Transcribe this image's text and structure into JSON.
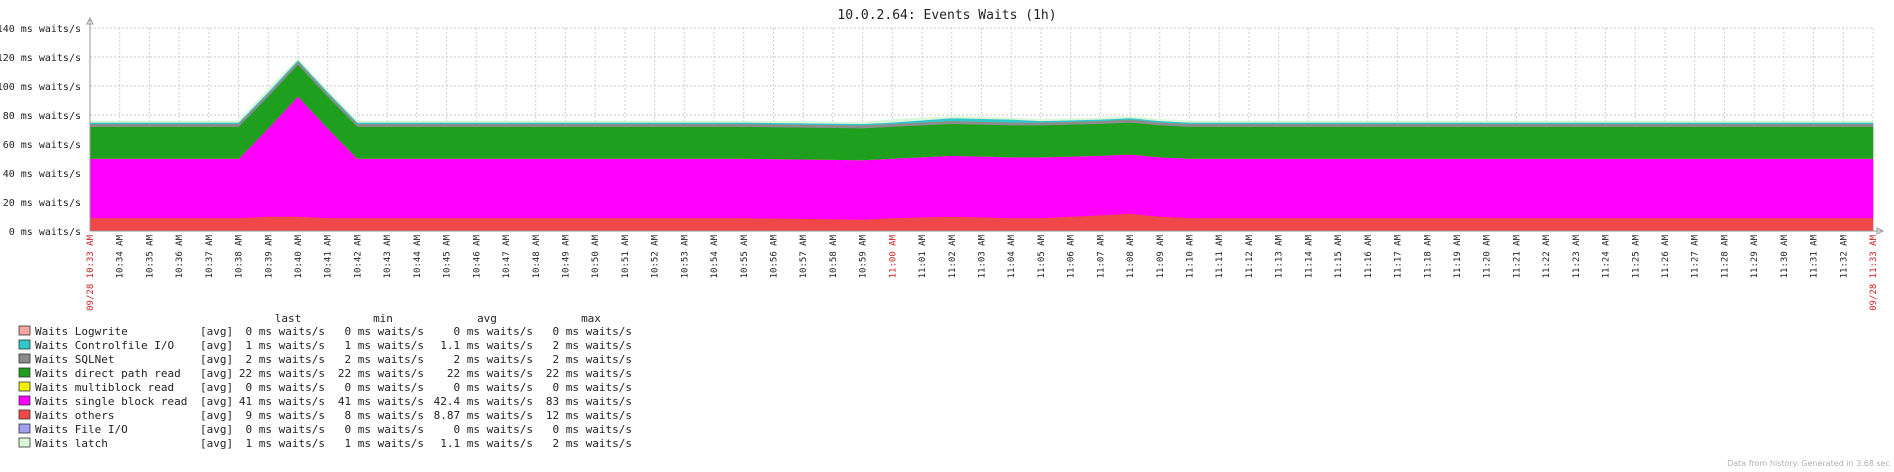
{
  "chart_data": {
    "type": "area",
    "title": "10.0.2.64: Events Waits (1h)",
    "ylim": [
      0,
      140
    ],
    "y_ticks": [
      "0 ms waits/s",
      "20 ms waits/s",
      "40 ms waits/s",
      "60 ms waits/s",
      "80 ms waits/s",
      "100 ms waits/s",
      "120 ms waits/s",
      "140 ms waits/s"
    ],
    "y_tick_values": [
      0,
      20,
      40,
      60,
      80,
      100,
      120,
      140
    ],
    "x_start_label": "09/28 10:33 AM",
    "x_end_label": "09/28 11:33 AM",
    "x_labels": [
      "10:34 AM",
      "10:35 AM",
      "10:36 AM",
      "10:37 AM",
      "10:38 AM",
      "10:39 AM",
      "10:40 AM",
      "10:41 AM",
      "10:42 AM",
      "10:43 AM",
      "10:44 AM",
      "10:45 AM",
      "10:46 AM",
      "10:47 AM",
      "10:48 AM",
      "10:49 AM",
      "10:50 AM",
      "10:51 AM",
      "10:52 AM",
      "10:53 AM",
      "10:54 AM",
      "10:55 AM",
      "10:56 AM",
      "10:57 AM",
      "10:58 AM",
      "10:59 AM",
      "11:00 AM",
      "11:01 AM",
      "11:02 AM",
      "11:03 AM",
      "11:04 AM",
      "11:05 AM",
      "11:06 AM",
      "11:07 AM",
      "11:08 AM",
      "11:09 AM",
      "11:10 AM",
      "11:11 AM",
      "11:12 AM",
      "11:13 AM",
      "11:14 AM",
      "11:15 AM",
      "11:16 AM",
      "11:17 AM",
      "11:18 AM",
      "11:19 AM",
      "11:20 AM",
      "11:21 AM",
      "11:22 AM",
      "11:23 AM",
      "11:24 AM",
      "11:25 AM",
      "11:26 AM",
      "11:27 AM",
      "11:28 AM",
      "11:29 AM",
      "11:30 AM",
      "11:31 AM",
      "11:32 AM",
      "11:33 AM"
    ],
    "x_highlight_labels": [
      "11:00 AM"
    ],
    "x": [
      "10:33",
      "10:37",
      "10:38",
      "10:39",
      "10:40",
      "10:41",
      "10:42",
      "10:46",
      "10:47",
      "10:55",
      "10:59",
      "11:00",
      "11:02",
      "11:04",
      "11:05",
      "11:07",
      "11:08",
      "11:09",
      "11:10",
      "11:20",
      "11:28",
      "11:29",
      "11:33"
    ],
    "series": [
      {
        "name": "Waits Logwrite",
        "color": "#f4a6a0",
        "values": [
          0,
          0,
          0,
          0,
          0,
          0,
          0,
          0,
          0,
          0,
          0,
          0,
          0,
          0,
          0,
          0,
          0,
          0,
          0,
          0,
          0,
          0,
          0
        ]
      },
      {
        "name": "Waits others",
        "color": "#f04848",
        "values": [
          9,
          9,
          9,
          10,
          10,
          9,
          9,
          9,
          9,
          9,
          8,
          9,
          10,
          9,
          9,
          11,
          12,
          10,
          9,
          9,
          9,
          9,
          9
        ]
      },
      {
        "name": "Waits single block read",
        "color": "#ff00ff",
        "values": [
          41,
          41,
          41,
          61,
          83,
          62,
          41,
          41,
          41,
          41,
          41,
          41,
          42,
          42,
          42,
          41,
          41,
          41,
          41,
          41,
          41,
          41,
          41
        ]
      },
      {
        "name": "Waits multiblock read",
        "color": "#f0f000",
        "values": [
          0,
          0,
          0,
          0,
          0,
          0,
          0,
          0,
          0,
          0,
          0,
          0,
          0,
          0,
          0,
          0,
          0,
          0,
          0,
          0,
          0,
          0,
          0
        ]
      },
      {
        "name": "Waits direct path read",
        "color": "#1ea01e",
        "values": [
          22,
          22,
          22,
          22,
          22,
          22,
          22,
          22,
          22,
          22,
          22,
          22,
          22,
          22,
          22,
          22,
          22,
          22,
          22,
          22,
          22,
          22,
          22
        ]
      },
      {
        "name": "Waits SQLNet",
        "color": "#8c8c8c",
        "values": [
          2,
          2,
          2,
          2,
          2,
          2,
          2,
          2,
          2,
          2,
          2,
          2,
          2,
          2,
          2,
          2,
          2,
          2,
          2,
          2,
          2,
          2,
          2
        ]
      },
      {
        "name": "Waits Controlfile I/O",
        "color": "#30c8c8",
        "values": [
          1,
          1,
          1,
          1,
          1,
          1,
          1,
          1,
          1,
          1,
          1,
          1,
          2,
          2,
          1,
          1,
          1,
          1,
          1,
          1,
          1,
          1,
          1
        ]
      },
      {
        "name": "Waits File I/O",
        "color": "#a0a0f0",
        "values": [
          0,
          0,
          0,
          0,
          0,
          0,
          0,
          0,
          0,
          0,
          0,
          0,
          0,
          0,
          0,
          0,
          0,
          0,
          0,
          0,
          0,
          0,
          0
        ]
      },
      {
        "name": "Waits latch",
        "color": "#d8f8d8",
        "values": [
          1,
          1,
          1,
          2,
          1,
          1,
          1,
          1,
          1,
          1,
          1,
          2,
          1,
          1,
          1,
          1,
          1,
          1,
          1,
          1,
          1,
          1,
          1
        ]
      }
    ],
    "grid": true
  },
  "legend": {
    "headers": {
      "last": "last",
      "min": "min",
      "avg": "avg",
      "max": "max"
    },
    "rows": [
      {
        "name": "Waits Logwrite",
        "color": "#f4a6a0",
        "func": "[avg]",
        "last": "0 ms waits/s",
        "min": "0 ms waits/s",
        "avg": "0 ms waits/s",
        "max": "0 ms waits/s"
      },
      {
        "name": "Waits Controlfile I/O",
        "color": "#30c8c8",
        "func": "[avg]",
        "last": "1 ms waits/s",
        "min": "1 ms waits/s",
        "avg": "1.1 ms waits/s",
        "max": "2 ms waits/s"
      },
      {
        "name": "Waits SQLNet",
        "color": "#8c8c8c",
        "func": "[avg]",
        "last": "2 ms waits/s",
        "min": "2 ms waits/s",
        "avg": "2 ms waits/s",
        "max": "2 ms waits/s"
      },
      {
        "name": "Waits direct path read",
        "color": "#1ea01e",
        "func": "[avg]",
        "last": "22 ms waits/s",
        "min": "22 ms waits/s",
        "avg": "22 ms waits/s",
        "max": "22 ms waits/s"
      },
      {
        "name": "Waits multiblock read",
        "color": "#f0f000",
        "func": "[avg]",
        "last": "0 ms waits/s",
        "min": "0 ms waits/s",
        "avg": "0 ms waits/s",
        "max": "0 ms waits/s"
      },
      {
        "name": "Waits single block read",
        "color": "#ff00ff",
        "func": "[avg]",
        "last": "41 ms waits/s",
        "min": "41 ms waits/s",
        "avg": "42.4 ms waits/s",
        "max": "83 ms waits/s"
      },
      {
        "name": "Waits others",
        "color": "#f04848",
        "func": "[avg]",
        "last": "9 ms waits/s",
        "min": "8 ms waits/s",
        "avg": "8.87 ms waits/s",
        "max": "12 ms waits/s"
      },
      {
        "name": "Waits File I/O",
        "color": "#a0a0f0",
        "func": "[avg]",
        "last": "0 ms waits/s",
        "min": "0 ms waits/s",
        "avg": "0 ms waits/s",
        "max": "0 ms waits/s"
      },
      {
        "name": "Waits latch",
        "color": "#d8f8d8",
        "func": "[avg]",
        "last": "1 ms waits/s",
        "min": "1 ms waits/s",
        "avg": "1.1 ms waits/s",
        "max": "2 ms waits/s"
      }
    ]
  },
  "footer": "Data from history. Generated in 3.68 sec"
}
